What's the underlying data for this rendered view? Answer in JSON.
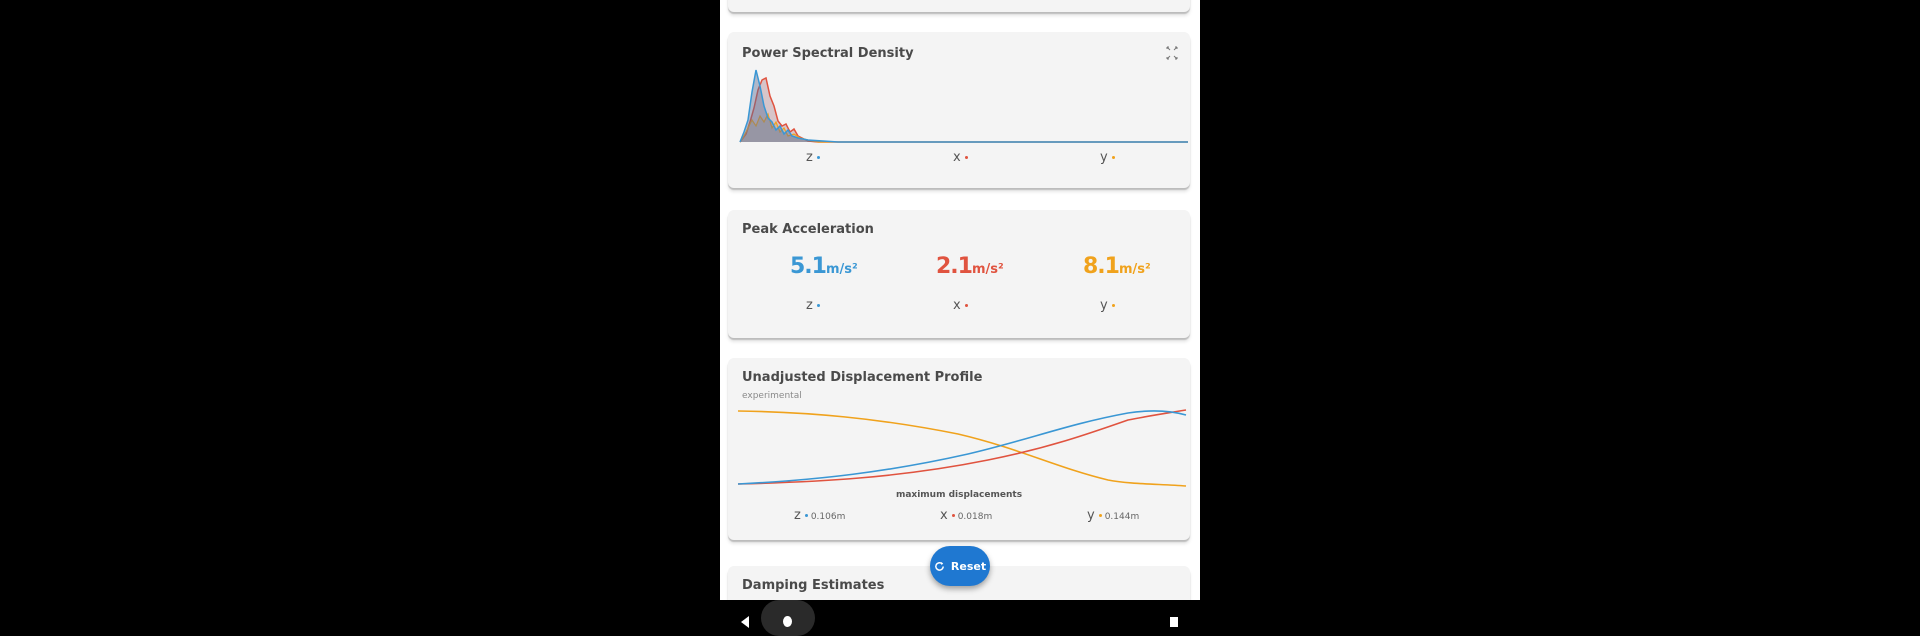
{
  "psd_card": {
    "title": "Power Spectral Density",
    "expand_icon": "expand-icon"
  },
  "axes": {
    "z": "z",
    "x": "x",
    "y": "y"
  },
  "colors": {
    "z": "#3a97d4",
    "x": "#e0533f",
    "y": "#f0a21c"
  },
  "peak_card": {
    "title": "Peak Acceleration",
    "z": {
      "value": "5.1",
      "unit": "m/s²"
    },
    "x": {
      "value": "2.1",
      "unit": "m/s²"
    },
    "y": {
      "value": "8.1",
      "unit": "m/s²"
    }
  },
  "displacement_card": {
    "title": "Unadjusted Displacement Profile",
    "subtitle": "experimental",
    "max_label": "maximum displacements",
    "z_max": "0.106m",
    "x_max": "0.018m",
    "y_max": "0.144m"
  },
  "damping_card": {
    "title": "Damping Estimates"
  },
  "fab": {
    "label": "Reset",
    "icon": "refresh-icon"
  },
  "navbar": {
    "back_icon": "back-icon",
    "home_icon": "home-icon",
    "recent_icon": "recent-apps-icon"
  }
}
